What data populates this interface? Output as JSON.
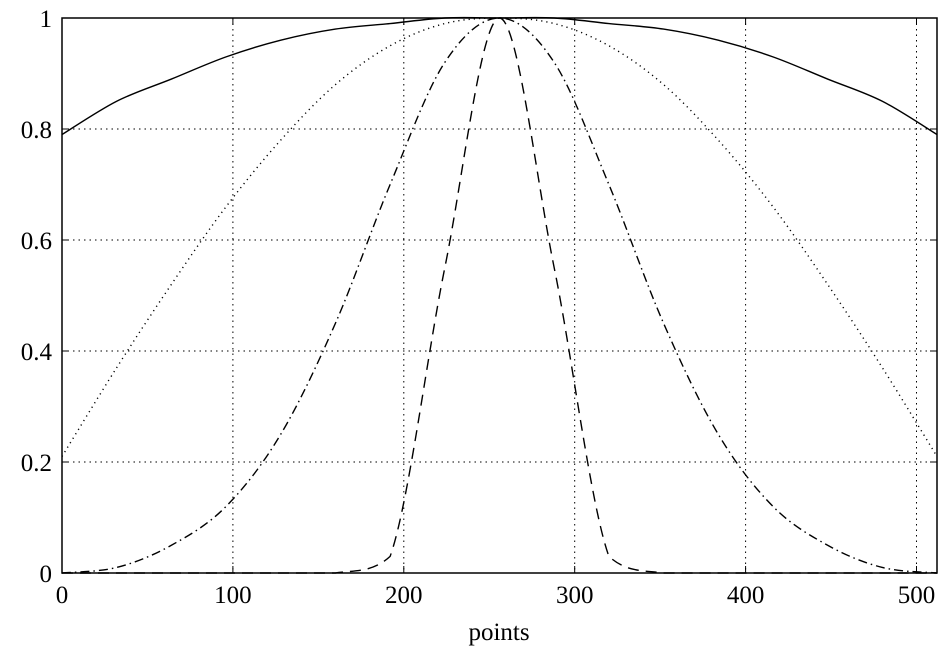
{
  "chart_data": {
    "type": "line",
    "title": "",
    "xlabel": "points",
    "ylabel": "",
    "xlim": [
      0,
      512
    ],
    "ylim": [
      0,
      1
    ],
    "xticks": [
      "0",
      "100",
      "200",
      "300",
      "400",
      "500"
    ],
    "yticks": [
      "0",
      "0.2",
      "0.4",
      "0.6",
      "0.8",
      "1"
    ],
    "grid": true,
    "legend": "none",
    "x": [
      0,
      32,
      64,
      96,
      128,
      160,
      192,
      224,
      256,
      288,
      320,
      352,
      384,
      416,
      448,
      480,
      512
    ],
    "series": [
      {
        "style": "solid",
        "values": [
          0.79,
          0.85,
          0.89,
          0.93,
          0.96,
          0.98,
          0.99,
          1.0,
          1.0,
          1.0,
          0.99,
          0.98,
          0.96,
          0.93,
          0.89,
          0.85,
          0.79
        ]
      },
      {
        "style": "dotted",
        "values": [
          0.21,
          0.37,
          0.52,
          0.66,
          0.78,
          0.88,
          0.95,
          0.99,
          1.0,
          0.99,
          0.95,
          0.88,
          0.78,
          0.66,
          0.52,
          0.37,
          0.21
        ]
      },
      {
        "style": "dashdot",
        "values": [
          0.0,
          0.01,
          0.05,
          0.12,
          0.25,
          0.45,
          0.7,
          0.92,
          1.0,
          0.92,
          0.7,
          0.45,
          0.25,
          0.12,
          0.05,
          0.01,
          0.0
        ]
      },
      {
        "style": "dashed",
        "values": [
          0.0,
          0.0,
          0.0,
          0.0,
          0.0,
          0.0,
          0.03,
          0.55,
          1.0,
          0.55,
          0.03,
          0.0,
          0.0,
          0.0,
          0.0,
          0.0,
          0.0
        ]
      }
    ]
  }
}
